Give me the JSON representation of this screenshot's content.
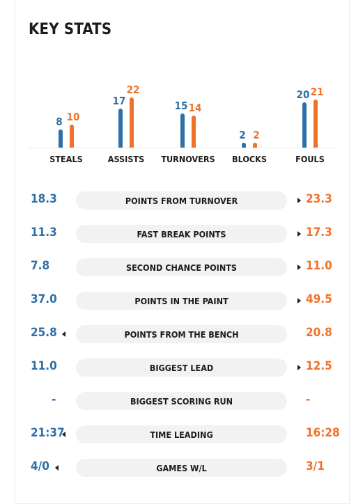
{
  "title": "KEY STATS",
  "colors": {
    "team_a": "#2f6fa8",
    "team_b": "#f0722a"
  },
  "chart_data": {
    "type": "bar",
    "categories": [
      "STEALS",
      "ASSISTS",
      "TURNOVERS",
      "BLOCKS",
      "FOULS"
    ],
    "series": [
      {
        "values": [
          8,
          17,
          15,
          2,
          20
        ]
      },
      {
        "values": [
          10,
          22,
          14,
          2,
          21
        ]
      }
    ]
  },
  "rows": [
    {
      "label": "POINTS FROM TURNOVER",
      "left": "18.3",
      "right": "23.3",
      "leader": "right"
    },
    {
      "label": "FAST BREAK POINTS",
      "left": "11.3",
      "right": "17.3",
      "leader": "right"
    },
    {
      "label": "SECOND CHANCE POINTS",
      "left": "7.8",
      "right": "11.0",
      "leader": "right"
    },
    {
      "label": "POINTS IN THE PAINT",
      "left": "37.0",
      "right": "49.5",
      "leader": "right"
    },
    {
      "label": "POINTS FROM THE BENCH",
      "left": "25.8",
      "right": "20.8",
      "leader": "left"
    },
    {
      "label": "BIGGEST LEAD",
      "left": "11.0",
      "right": "12.5",
      "leader": "right"
    },
    {
      "label": "BIGGEST SCORING RUN",
      "left": "-",
      "right": "-",
      "leader": "none"
    },
    {
      "label": "TIME LEADING",
      "left": "21:37",
      "right": "16:28",
      "leader": "left"
    },
    {
      "label": "GAMES W/L",
      "left": "4/0",
      "right": "3/1",
      "leader": "left"
    }
  ]
}
